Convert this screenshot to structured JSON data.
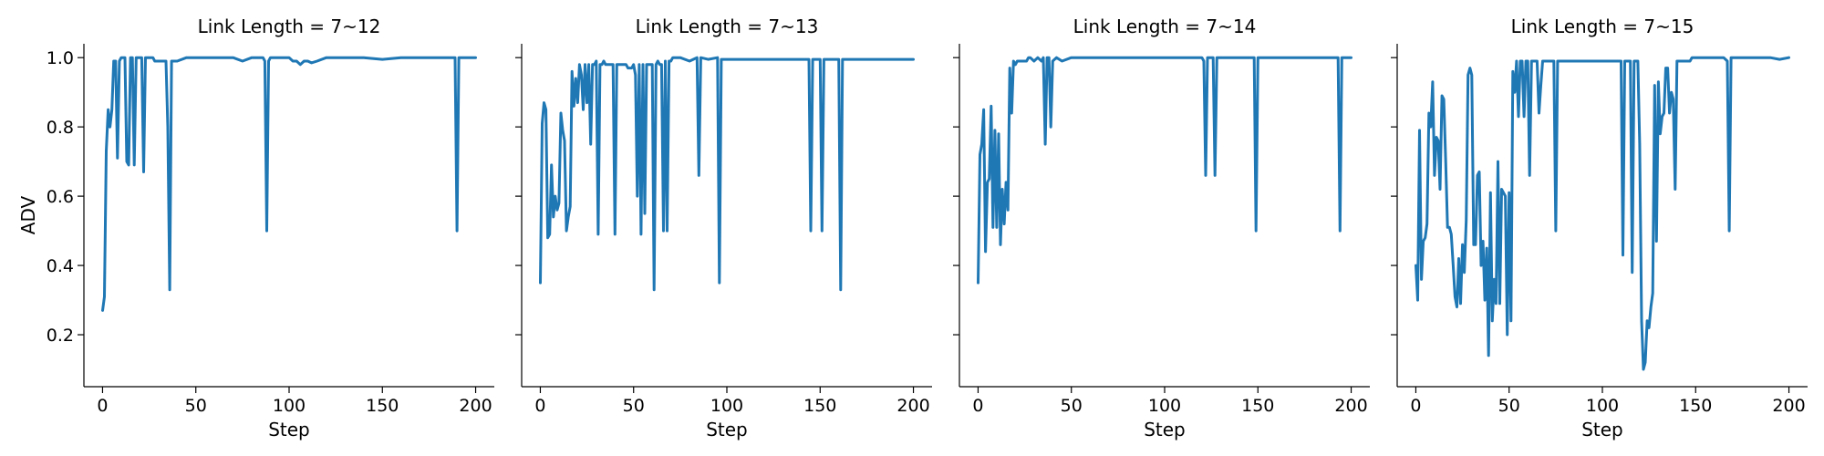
{
  "chart_data": [
    {
      "type": "line",
      "title": "Link Length = 7~12",
      "xlabel": "Step",
      "ylabel": "ADV",
      "xlim": [
        -10,
        210
      ],
      "ylim": [
        0.05,
        1.04
      ],
      "xticks": [
        0,
        50,
        100,
        150,
        200
      ],
      "yticks": [
        0.2,
        0.4,
        0.6,
        0.8,
        1.0
      ],
      "ytick_labels": [
        "0.2",
        "0.4",
        "0.6",
        "0.8",
        "1.0"
      ],
      "color": "#1f77b4",
      "x": [
        0,
        1,
        2,
        3,
        4,
        5,
        6,
        7,
        8,
        9,
        10,
        11,
        12,
        13,
        14,
        15,
        16,
        17,
        18,
        19,
        20,
        21,
        22,
        23,
        24,
        25,
        26,
        27,
        28,
        29,
        30,
        32,
        34,
        35,
        36,
        37,
        38,
        40,
        45,
        50,
        60,
        70,
        75,
        80,
        85,
        86,
        87,
        88,
        89,
        90,
        95,
        100,
        102,
        104,
        106,
        108,
        110,
        112,
        115,
        120,
        130,
        140,
        150,
        160,
        170,
        180,
        185,
        188,
        189,
        190,
        191,
        192,
        195,
        200
      ],
      "values": [
        0.27,
        0.31,
        0.73,
        0.85,
        0.8,
        0.85,
        0.99,
        0.99,
        0.71,
        0.99,
        1.0,
        1.0,
        1.0,
        0.7,
        0.69,
        1.0,
        1.0,
        0.69,
        1.0,
        1.0,
        1.0,
        1.0,
        0.67,
        1.0,
        1.0,
        1.0,
        1.0,
        1.0,
        0.99,
        0.99,
        0.99,
        0.99,
        0.99,
        0.8,
        0.33,
        0.99,
        0.99,
        0.99,
        1.0,
        1.0,
        1.0,
        1.0,
        0.99,
        1.0,
        1.0,
        1.0,
        0.99,
        0.5,
        0.99,
        1.0,
        1.0,
        1.0,
        0.99,
        0.99,
        0.98,
        0.99,
        0.99,
        0.985,
        0.99,
        1.0,
        1.0,
        1.0,
        0.995,
        1.0,
        1.0,
        1.0,
        1.0,
        1.0,
        1.0,
        0.5,
        1.0,
        1.0,
        1.0,
        1.0
      ]
    },
    {
      "type": "line",
      "title": "Link Length = 7~13",
      "xlabel": "Step",
      "ylabel": "",
      "xlim": [
        -10,
        210
      ],
      "ylim": [
        0.05,
        1.04
      ],
      "xticks": [
        0,
        50,
        100,
        150,
        200
      ],
      "yticks": [
        0.2,
        0.4,
        0.6,
        0.8,
        1.0
      ],
      "color": "#1f77b4",
      "x": [
        0,
        1,
        2,
        3,
        4,
        5,
        6,
        7,
        8,
        9,
        10,
        11,
        12,
        13,
        14,
        15,
        16,
        17,
        18,
        19,
        20,
        21,
        22,
        23,
        24,
        25,
        26,
        27,
        28,
        29,
        30,
        31,
        32,
        33,
        34,
        35,
        36,
        37,
        38,
        39,
        40,
        41,
        42,
        43,
        44,
        45,
        46,
        47,
        48,
        49,
        50,
        51,
        52,
        53,
        54,
        55,
        56,
        57,
        58,
        59,
        60,
        61,
        62,
        63,
        64,
        65,
        66,
        67,
        68,
        69,
        70,
        71,
        72,
        73,
        74,
        75,
        80,
        84,
        85,
        86,
        90,
        95,
        96,
        97,
        100,
        120,
        140,
        144,
        145,
        146,
        150,
        151,
        152,
        155,
        160,
        161,
        162,
        170,
        180,
        190,
        200
      ],
      "values": [
        0.35,
        0.81,
        0.87,
        0.85,
        0.48,
        0.49,
        0.69,
        0.54,
        0.6,
        0.56,
        0.58,
        0.84,
        0.79,
        0.76,
        0.5,
        0.54,
        0.57,
        0.96,
        0.86,
        0.94,
        0.87,
        0.98,
        0.95,
        0.85,
        0.98,
        0.87,
        0.98,
        0.75,
        0.98,
        0.98,
        0.99,
        0.49,
        0.98,
        0.98,
        0.99,
        0.98,
        0.98,
        0.98,
        0.98,
        0.98,
        0.49,
        0.98,
        0.98,
        0.98,
        0.98,
        0.98,
        0.98,
        0.97,
        0.97,
        0.97,
        0.98,
        0.95,
        0.6,
        0.98,
        0.49,
        0.98,
        0.55,
        0.98,
        0.98,
        0.98,
        0.98,
        0.33,
        0.98,
        0.99,
        0.98,
        0.98,
        0.5,
        0.99,
        0.5,
        0.99,
        0.99,
        1.0,
        1.0,
        1.0,
        1.0,
        1.0,
        0.99,
        1.0,
        0.66,
        1.0,
        0.995,
        1.0,
        0.35,
        0.995,
        0.995,
        0.995,
        0.995,
        0.995,
        0.5,
        0.995,
        0.995,
        0.5,
        0.995,
        0.995,
        0.995,
        0.33,
        0.995,
        0.995,
        0.995,
        0.995,
        0.995
      ]
    },
    {
      "type": "line",
      "title": "Link Length = 7~14",
      "xlabel": "Step",
      "ylabel": "",
      "xlim": [
        -10,
        210
      ],
      "ylim": [
        0.05,
        1.04
      ],
      "xticks": [
        0,
        50,
        100,
        150,
        200
      ],
      "yticks": [
        0.2,
        0.4,
        0.6,
        0.8,
        1.0
      ],
      "color": "#1f77b4",
      "x": [
        0,
        1,
        2,
        3,
        4,
        5,
        6,
        7,
        8,
        9,
        10,
        11,
        12,
        13,
        14,
        15,
        16,
        17,
        18,
        19,
        20,
        21,
        22,
        23,
        24,
        25,
        26,
        27,
        28,
        30,
        32,
        34,
        35,
        36,
        37,
        38,
        39,
        40,
        42,
        45,
        50,
        60,
        70,
        80,
        90,
        100,
        110,
        120,
        121,
        122,
        123,
        126,
        127,
        128,
        130,
        140,
        148,
        149,
        150,
        160,
        170,
        180,
        190,
        193,
        194,
        195,
        200
      ],
      "values": [
        0.35,
        0.72,
        0.75,
        0.85,
        0.44,
        0.64,
        0.65,
        0.86,
        0.51,
        0.79,
        0.51,
        0.78,
        0.46,
        0.62,
        0.52,
        0.64,
        0.56,
        0.97,
        0.84,
        0.99,
        0.98,
        0.99,
        0.99,
        0.99,
        0.99,
        0.99,
        0.99,
        1.0,
        1.0,
        0.99,
        1.0,
        0.99,
        1.0,
        0.75,
        1.0,
        1.0,
        0.8,
        0.99,
        1.0,
        0.99,
        1.0,
        1.0,
        1.0,
        1.0,
        1.0,
        1.0,
        1.0,
        1.0,
        0.99,
        0.66,
        1.0,
        1.0,
        0.66,
        1.0,
        1.0,
        1.0,
        1.0,
        0.5,
        1.0,
        1.0,
        1.0,
        1.0,
        1.0,
        1.0,
        0.5,
        1.0,
        1.0
      ]
    },
    {
      "type": "line",
      "title": "Link Length = 7~15",
      "xlabel": "Step",
      "ylabel": "",
      "xlim": [
        -10,
        210
      ],
      "ylim": [
        0.05,
        1.04
      ],
      "xticks": [
        0,
        50,
        100,
        150,
        200
      ],
      "yticks": [
        0.2,
        0.4,
        0.6,
        0.8,
        1.0
      ],
      "color": "#1f77b4",
      "x": [
        0,
        1,
        2,
        3,
        4,
        5,
        6,
        7,
        8,
        9,
        10,
        11,
        12,
        13,
        14,
        15,
        16,
        17,
        18,
        19,
        20,
        21,
        22,
        23,
        24,
        25,
        26,
        27,
        28,
        29,
        30,
        31,
        32,
        33,
        34,
        35,
        36,
        37,
        38,
        39,
        40,
        41,
        42,
        43,
        44,
        45,
        46,
        47,
        48,
        49,
        50,
        51,
        52,
        53,
        54,
        55,
        56,
        57,
        58,
        59,
        60,
        61,
        62,
        63,
        64,
        65,
        66,
        67,
        68,
        69,
        70,
        71,
        72,
        73,
        74,
        75,
        76,
        77,
        78,
        79,
        80,
        81,
        82,
        83,
        84,
        85,
        86,
        87,
        88,
        89,
        90,
        92,
        94,
        96,
        98,
        100,
        102,
        104,
        106,
        108,
        110,
        111,
        112,
        113,
        114,
        115,
        116,
        117,
        118,
        119,
        120,
        121,
        122,
        123,
        124,
        125,
        126,
        127,
        128,
        129,
        130,
        131,
        132,
        133,
        134,
        135,
        136,
        137,
        138,
        139,
        140,
        141,
        142,
        143,
        144,
        145,
        146,
        147,
        148,
        150,
        155,
        160,
        165,
        167,
        168,
        169,
        170,
        175,
        180,
        185,
        190,
        195,
        200
      ],
      "values": [
        0.4,
        0.3,
        0.79,
        0.36,
        0.47,
        0.48,
        0.52,
        0.84,
        0.8,
        0.93,
        0.66,
        0.77,
        0.76,
        0.62,
        0.89,
        0.88,
        0.7,
        0.51,
        0.51,
        0.49,
        0.4,
        0.31,
        0.28,
        0.42,
        0.29,
        0.46,
        0.38,
        0.53,
        0.95,
        0.97,
        0.95,
        0.46,
        0.46,
        0.66,
        0.67,
        0.4,
        0.47,
        0.3,
        0.45,
        0.14,
        0.61,
        0.24,
        0.36,
        0.29,
        0.7,
        0.29,
        0.62,
        0.61,
        0.6,
        0.2,
        0.61,
        0.24,
        0.96,
        0.9,
        0.99,
        0.83,
        0.99,
        0.99,
        0.83,
        0.99,
        0.99,
        0.66,
        0.99,
        0.99,
        0.99,
        0.99,
        0.84,
        0.92,
        0.99,
        0.99,
        0.99,
        0.99,
        0.99,
        0.99,
        0.99,
        0.5,
        0.99,
        0.99,
        0.99,
        0.99,
        0.99,
        0.99,
        0.99,
        0.99,
        0.99,
        0.99,
        0.99,
        0.99,
        0.99,
        0.99,
        0.99,
        0.99,
        0.99,
        0.99,
        0.99,
        0.99,
        0.99,
        0.99,
        0.99,
        0.99,
        0.99,
        0.43,
        0.99,
        0.99,
        0.99,
        0.99,
        0.38,
        0.99,
        0.99,
        0.99,
        0.75,
        0.24,
        0.1,
        0.12,
        0.24,
        0.22,
        0.28,
        0.32,
        0.92,
        0.47,
        0.93,
        0.78,
        0.83,
        0.84,
        0.97,
        0.97,
        0.84,
        0.9,
        0.88,
        0.62,
        0.99,
        0.99,
        0.99,
        0.99,
        0.99,
        0.99,
        0.99,
        0.99,
        1.0,
        1.0,
        1.0,
        1.0,
        1.0,
        0.99,
        0.5,
        1.0,
        1.0,
        1.0,
        1.0,
        1.0,
        1.0,
        0.995,
        1.0
      ]
    }
  ]
}
